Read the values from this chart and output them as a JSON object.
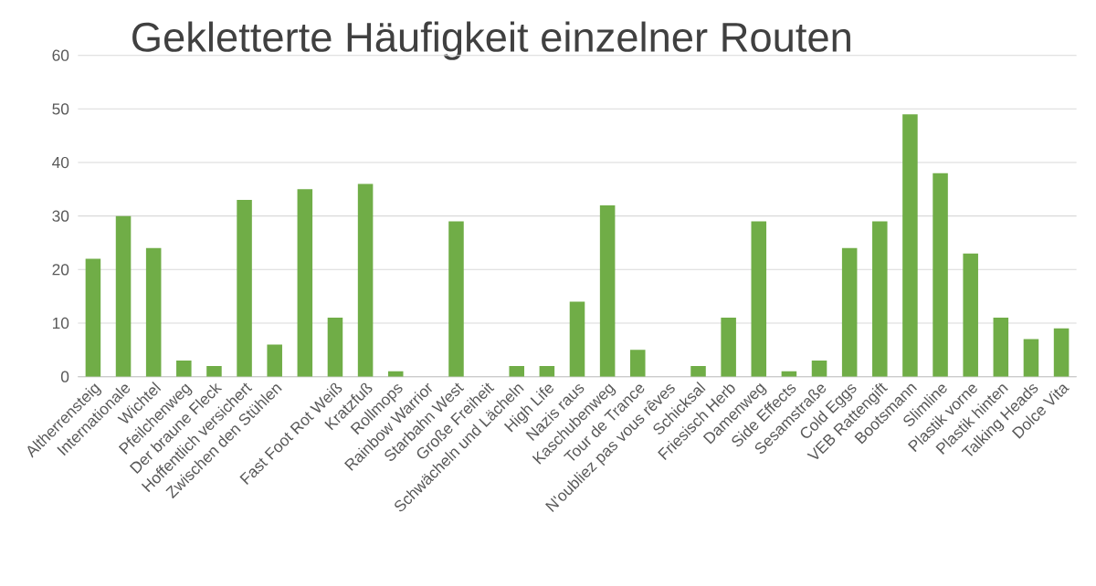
{
  "chart_data": {
    "type": "bar",
    "title": "Gekletterte Häufigkeit einzelner Routen",
    "categories": [
      "Altherrensteig",
      "Internationale",
      "Wichtel",
      "Pfeilchenweg",
      "Der braune Fleck",
      "Hoffentlich versichert",
      "Zwischen den Stühlen",
      null,
      "Fast Foot Rot Weiß",
      "Kratzfuß",
      "Rollmops",
      "Rainbow Warrior",
      "Starbahn West",
      "Große Freiheit",
      "Schwächeln und Lächeln",
      "High Life",
      "Nazis raus",
      "Kaschubenweg",
      "Tour de Trance",
      "N'oubliez pas vous rêves",
      "Schicksal",
      "Friesisch Herb",
      "Damenweg",
      "Side Effects",
      "Sesamstraße",
      "Cold Eggs",
      "VEB Rattengift",
      "Bootsmann",
      "Slimline",
      "Plastik vorne",
      "Plastik hinten",
      "Talking Heads",
      "Dolce Vita"
    ],
    "values": [
      22,
      30,
      24,
      3,
      2,
      33,
      6,
      35,
      11,
      36,
      1,
      0,
      29,
      0,
      2,
      2,
      14,
      32,
      5,
      0,
      2,
      11,
      29,
      1,
      3,
      24,
      29,
      49,
      38,
      23,
      11,
      7,
      9
    ],
    "color": "#70ad47",
    "ylim": [
      0,
      60
    ],
    "yticks": [
      0,
      10,
      20,
      30,
      40,
      50,
      60
    ],
    "grid": "y"
  }
}
